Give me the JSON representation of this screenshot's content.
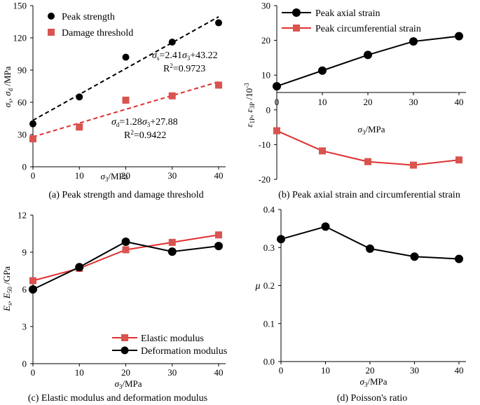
{
  "colors": {
    "black": "#000000",
    "red": "#e03030",
    "marker_red": "#d9534f"
  },
  "chart_data": [
    {
      "id": "a",
      "type": "scatter",
      "caption": "(a) Peak strength and damage threshold",
      "xlabel": "σ3/MPa",
      "ylabel": "σs, σd /MPa",
      "xlim": [
        0,
        40
      ],
      "ylim": [
        0,
        150
      ],
      "xticks": [
        "0",
        "10",
        "20",
        "30",
        "40"
      ],
      "yticks": [
        "0",
        "30",
        "60",
        "90",
        "120",
        "150"
      ],
      "legend_position": "top-left",
      "series": [
        {
          "name": "Peak  strength",
          "marker": "circle",
          "color": "#000000",
          "x": [
            0,
            10,
            20,
            30,
            40
          ],
          "y": [
            40,
            65,
            102,
            116,
            134
          ]
        },
        {
          "name": "Damage threshold",
          "marker": "square",
          "color": "#d9534f",
          "x": [
            0,
            10,
            20,
            30,
            40
          ],
          "y": [
            26,
            37,
            62,
            66,
            76
          ]
        }
      ],
      "fits": [
        {
          "color": "#000000",
          "slope": 2.41,
          "intercept": 43.22,
          "x": [
            0,
            40
          ]
        },
        {
          "color": "#e03030",
          "slope": 1.28,
          "intercept": 27.88,
          "x": [
            0,
            40
          ]
        }
      ],
      "annotations": {
        "eq1": "σs=2.41σ3+43.22",
        "r1": "R²=0.9723",
        "eq2": "σd=1.28σ3+27.88",
        "r2": "R²=0.9422"
      }
    },
    {
      "id": "b",
      "type": "line",
      "caption": "(b)  Peak axial strain and circumferential strain",
      "xlabel": "σ3/MPa",
      "ylabel": "ε1p, ε3p /10⁻³",
      "xlim": [
        0,
        40
      ],
      "ylim": [
        -20,
        30
      ],
      "xticks": [
        "0",
        "10",
        "20",
        "30",
        "40"
      ],
      "yticks": [
        "-20",
        "-10",
        "0",
        "10",
        "20",
        "30"
      ],
      "legend_position": "top-left",
      "series": [
        {
          "name": "Peak axial strain",
          "marker": "circle",
          "color": "#000000",
          "x": [
            0,
            10,
            20,
            30,
            40
          ],
          "y": [
            6.8,
            11.3,
            15.8,
            19.7,
            21.2
          ]
        },
        {
          "name": "Peak circumferential strain",
          "marker": "square",
          "color": "#e03030",
          "x": [
            0,
            10,
            20,
            30,
            40
          ],
          "y": [
            -6.0,
            -11.8,
            -14.9,
            -15.9,
            -14.4
          ]
        }
      ]
    },
    {
      "id": "c",
      "type": "line",
      "caption": "(c) Elastic modulus and deformation modulus",
      "xlabel": "σ3/MPa",
      "ylabel": "Es, E50 /GPa",
      "xlim": [
        0,
        40
      ],
      "ylim": [
        0,
        12
      ],
      "xticks": [
        "0",
        "10",
        "20",
        "30",
        "40"
      ],
      "yticks": [
        "0",
        "3",
        "6",
        "9",
        "12"
      ],
      "legend_position": "bottom-right",
      "series": [
        {
          "name": "Elastic modulus",
          "marker": "square",
          "color": "#e03030",
          "x": [
            0,
            10,
            20,
            30,
            40
          ],
          "y": [
            6.7,
            7.7,
            9.2,
            9.8,
            10.4
          ]
        },
        {
          "name": "Deformation modulus",
          "marker": "circle",
          "color": "#000000",
          "x": [
            0,
            10,
            20,
            30,
            40
          ],
          "y": [
            6.0,
            7.8,
            9.85,
            9.05,
            9.5
          ]
        }
      ]
    },
    {
      "id": "d",
      "type": "line",
      "caption": "(d) Poisson's ratio",
      "xlabel": "σ3/MPa",
      "ylabel": "μ",
      "xlim": [
        0,
        40
      ],
      "ylim": [
        0,
        0.4
      ],
      "xticks": [
        "0",
        "10",
        "20",
        "30",
        "40"
      ],
      "yticks": [
        "0.0",
        "0.1",
        "0.2",
        "0.3",
        "0.4"
      ],
      "series": [
        {
          "marker": "circle",
          "color": "#000000",
          "x": [
            0,
            10,
            20,
            30,
            40
          ],
          "y": [
            0.322,
            0.355,
            0.297,
            0.276,
            0.27
          ]
        }
      ]
    }
  ]
}
